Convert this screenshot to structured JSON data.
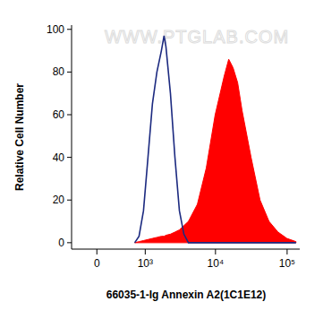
{
  "chart_data": {
    "type": "line",
    "xlabel": "66035-1-Ig Annexin A2(1C1E12)",
    "ylabel": "Relative Cell Number",
    "annotations": [
      "WWW.PTGLAB.COM"
    ],
    "log": "x",
    "x": [
      680,
      800,
      940,
      1100,
      1280,
      1490,
      1730,
      1890,
      2010,
      2330,
      2700,
      3120,
      3610,
      4180,
      5580,
      7430,
      9900,
      13200,
      15300,
      17600,
      20400,
      23500,
      31400,
      41900,
      55900,
      74500,
      99500,
      133000
    ],
    "series": [
      {
        "type": "area",
        "color": "#ff0000",
        "values": [
          0,
          0.5,
          1,
          1.5,
          2,
          2.5,
          3,
          3,
          3.5,
          4,
          5,
          6,
          8,
          10,
          18,
          35,
          60,
          78,
          86,
          82,
          75,
          62,
          40,
          20,
          10,
          5,
          2,
          0.5
        ]
      },
      {
        "type": "line",
        "color": "#1c2a80",
        "values": [
          0,
          3,
          15,
          40,
          65,
          80,
          90,
          97,
          92,
          70,
          40,
          15,
          4,
          0,
          0,
          0,
          0,
          0,
          0,
          0,
          0,
          0,
          0,
          0,
          0,
          0,
          0,
          0
        ]
      }
    ],
    "xlim": [
      -400,
      150000
    ],
    "xticks": [
      0,
      {
        "value": 1000,
        "label": "10³"
      },
      {
        "value": 10000,
        "label": "10⁴"
      },
      {
        "value": 100000,
        "label": "10⁵"
      }
    ],
    "ylim": [
      -3,
      102
    ],
    "yticks": [
      0,
      20,
      40,
      60,
      80,
      100
    ]
  }
}
